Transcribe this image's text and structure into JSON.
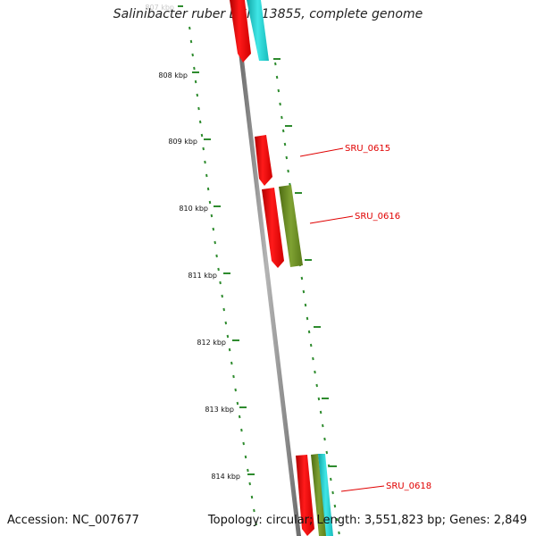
{
  "title": "Salinibacter ruber DSM 13855, complete genome",
  "footer": {
    "accession": "Accession: NC_007677",
    "summary": "Topology: circular; Length: 3,551,823 bp; Genes: 2,849"
  },
  "scale_ticks": [
    "807 kbp",
    "808 kbp",
    "809 kbp",
    "810 kbp",
    "811 kbp",
    "812 kbp",
    "813 kbp",
    "814 kbp"
  ],
  "gene_labels": [
    "SRU_0615",
    "SRU_0616",
    "SRU_0618"
  ],
  "colors": {
    "backbone": "#888888",
    "scale": "#2e8b2e",
    "cds_red": "#ff0000",
    "cds_olive": "#6b8e23",
    "cds_cyan": "#22d3d3",
    "label_red": "#e00000"
  }
}
